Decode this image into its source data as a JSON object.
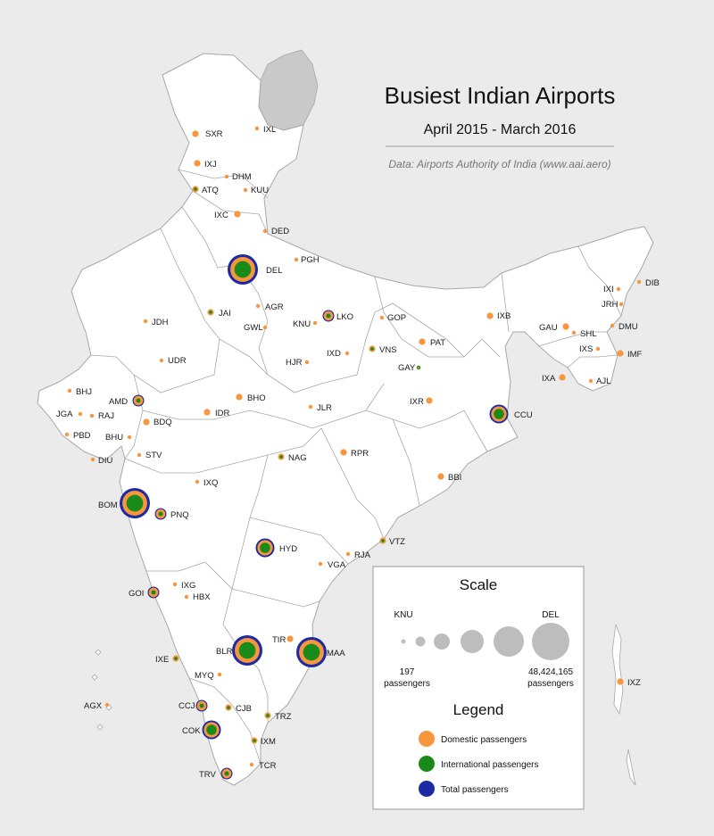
{
  "title": "Busiest Indian Airports",
  "subtitle": "April 2015 - March 2016",
  "credit": "Data: Airports Authority of India (www.aai.aero)",
  "colors": {
    "domestic": "#f7963c",
    "international": "#1a8a1a",
    "total": "#1c2aa6",
    "land": "#ffffff",
    "border": "#a8a8a8",
    "disputed": "#c9c9c9",
    "background": "#ebebeb"
  },
  "airports": [
    {
      "code": "SXR",
      "t": 2,
      "d": 1
    },
    {
      "code": "IXL",
      "t": 1,
      "d": 1
    },
    {
      "code": "IXJ",
      "t": 2,
      "d": 1
    },
    {
      "code": "DHM",
      "t": 1,
      "d": 1
    },
    {
      "code": "ATQ",
      "t": 2,
      "d": 1,
      "i": 1
    },
    {
      "code": "KUU",
      "t": 1,
      "d": 1
    },
    {
      "code": "IXC",
      "t": 2,
      "d": 1
    },
    {
      "code": "DED",
      "t": 1,
      "d": 1
    },
    {
      "code": "PGH",
      "t": 1,
      "d": 1
    },
    {
      "code": "DEL",
      "t": 5,
      "d": 1,
      "i": 1
    },
    {
      "code": "IXI",
      "t": 1,
      "d": 1
    },
    {
      "code": "DIB",
      "t": 1,
      "d": 1
    },
    {
      "code": "JRH",
      "t": 1,
      "d": 1
    },
    {
      "code": "AGR",
      "t": 1,
      "d": 1
    },
    {
      "code": "JAI",
      "t": 2,
      "d": 1,
      "i": 1
    },
    {
      "code": "LKO",
      "t": 3,
      "d": 1,
      "i": 1
    },
    {
      "code": "GOP",
      "t": 1,
      "d": 1
    },
    {
      "code": "IXB",
      "t": 2,
      "d": 1
    },
    {
      "code": "GAU",
      "t": 2,
      "d": 1
    },
    {
      "code": "DMU",
      "t": 1,
      "d": 1
    },
    {
      "code": "JDH",
      "t": 1,
      "d": 1
    },
    {
      "code": "GWL",
      "t": 1,
      "d": 1
    },
    {
      "code": "KNU",
      "t": 1,
      "d": 1
    },
    {
      "code": "SHL",
      "t": 1,
      "d": 1
    },
    {
      "code": "PAT",
      "t": 2,
      "d": 1
    },
    {
      "code": "IXS",
      "t": 1,
      "d": 1
    },
    {
      "code": "IXD",
      "t": 1,
      "d": 1
    },
    {
      "code": "VNS",
      "t": 2,
      "d": 1,
      "i": 1
    },
    {
      "code": "IMF",
      "t": 2,
      "d": 1
    },
    {
      "code": "UDR",
      "t": 1,
      "d": 1
    },
    {
      "code": "HJR",
      "t": 1,
      "d": 1
    },
    {
      "code": "GAY",
      "t": 1,
      "i": 1
    },
    {
      "code": "IXA",
      "t": 2,
      "d": 1
    },
    {
      "code": "AJL",
      "t": 1,
      "d": 1
    },
    {
      "code": "BHJ",
      "t": 1,
      "d": 1
    },
    {
      "code": "BHO",
      "t": 2,
      "d": 1
    },
    {
      "code": "AMD",
      "t": 3,
      "d": 1,
      "i": 1
    },
    {
      "code": "IXR",
      "t": 2,
      "d": 1
    },
    {
      "code": "JGA",
      "t": 1,
      "d": 1
    },
    {
      "code": "RAJ",
      "t": 1,
      "d": 1
    },
    {
      "code": "IDR",
      "t": 2,
      "d": 1
    },
    {
      "code": "JLR",
      "t": 1,
      "d": 1
    },
    {
      "code": "CCU",
      "t": 4,
      "d": 1,
      "i": 1
    },
    {
      "code": "BDQ",
      "t": 2,
      "d": 1
    },
    {
      "code": "PBD",
      "t": 1,
      "d": 1
    },
    {
      "code": "BHU",
      "t": 1,
      "d": 1
    },
    {
      "code": "DIU",
      "t": 1,
      "d": 1
    },
    {
      "code": "STV",
      "t": 1,
      "d": 1
    },
    {
      "code": "NAG",
      "t": 2,
      "d": 1,
      "i": 1
    },
    {
      "code": "RPR",
      "t": 2,
      "d": 1
    },
    {
      "code": "BBI",
      "t": 2,
      "d": 1
    },
    {
      "code": "IXQ",
      "t": 1,
      "d": 1
    },
    {
      "code": "BOM",
      "t": 5,
      "d": 1,
      "i": 1
    },
    {
      "code": "PNQ",
      "t": 3,
      "d": 1,
      "i": 1
    },
    {
      "code": "HYD",
      "t": 4,
      "d": 1,
      "i": 1
    },
    {
      "code": "VTZ",
      "t": 2,
      "d": 1,
      "i": 1
    },
    {
      "code": "RJA",
      "t": 1,
      "d": 1
    },
    {
      "code": "VGA",
      "t": 1,
      "d": 1
    },
    {
      "code": "GOI",
      "t": 3,
      "d": 1,
      "i": 1
    },
    {
      "code": "IXG",
      "t": 1,
      "d": 1
    },
    {
      "code": "HBX",
      "t": 1,
      "d": 1
    },
    {
      "code": "TIR",
      "t": 2,
      "d": 1
    },
    {
      "code": "BLR",
      "t": 5,
      "d": 1,
      "i": 1
    },
    {
      "code": "MAA",
      "t": 5,
      "d": 1,
      "i": 1
    },
    {
      "code": "IXE",
      "t": 2,
      "d": 1,
      "i": 1
    },
    {
      "code": "MYQ",
      "t": 1,
      "d": 1
    },
    {
      "code": "AGX",
      "t": 1,
      "d": 1
    },
    {
      "code": "IXZ",
      "t": 2,
      "d": 1
    },
    {
      "code": "CCJ",
      "t": 3,
      "d": 1,
      "i": 1
    },
    {
      "code": "CJB",
      "t": 2,
      "d": 1,
      "i": 1
    },
    {
      "code": "TRZ",
      "t": 2,
      "d": 1,
      "i": 1
    },
    {
      "code": "COK",
      "t": 4,
      "d": 1,
      "i": 1
    },
    {
      "code": "IXM",
      "t": 2,
      "d": 1,
      "i": 1
    },
    {
      "code": "TCR",
      "t": 1,
      "d": 1
    },
    {
      "code": "TRV",
      "t": 3,
      "d": 1,
      "i": 1
    }
  ],
  "scale": {
    "heading": "Scale",
    "min_code": "KNU",
    "max_code": "DEL",
    "min_value": "197",
    "max_value": "48,424,165",
    "unit": "passengers"
  },
  "legend": {
    "heading": "Legend",
    "items": [
      {
        "key": "domestic",
        "label": "Domestic passengers"
      },
      {
        "key": "international",
        "label": "International passengers"
      },
      {
        "key": "total",
        "label": "Total passengers"
      }
    ]
  }
}
